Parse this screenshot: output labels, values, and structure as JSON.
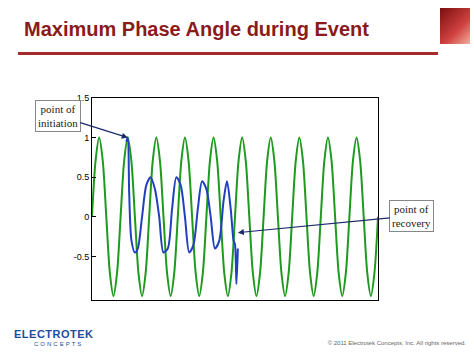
{
  "chart_data": {
    "type": "line",
    "title": "Maximum Phase Angle during Event",
    "tick_labels": "y",
    "grid": false,
    "xlim": [
      0,
      10
    ],
    "ylim": [
      -1.05,
      1.5
    ],
    "yticks": [
      -0.5,
      0,
      0.5,
      1,
      1.5
    ],
    "series": [
      {
        "color": "#1e9a1e",
        "x": [
          0,
          0.125,
          0.25,
          0.375,
          0.5,
          0.625,
          0.75,
          0.875,
          1,
          1.125,
          1.25,
          1.375,
          1.5,
          1.625,
          1.75,
          1.875,
          2,
          2.125,
          2.25,
          2.375,
          2.5,
          2.625,
          2.75,
          2.875,
          3,
          3.125,
          3.25,
          3.375,
          3.5,
          3.625,
          3.75,
          3.875,
          4,
          4.125,
          4.25,
          4.375,
          4.5,
          4.625,
          4.75,
          4.875,
          5,
          5.125,
          5.25,
          5.375,
          5.5,
          5.625,
          5.75,
          5.875,
          6,
          6.125,
          6.25,
          6.375,
          6.5,
          6.625,
          6.75,
          6.875,
          7,
          7.125,
          7.25,
          7.375,
          7.5,
          7.625,
          7.75,
          7.875,
          8,
          8.125,
          8.25,
          8.375,
          8.5,
          8.625,
          8.75,
          8.875,
          9,
          9.125,
          9.25,
          9.375,
          9.5,
          9.625,
          9.75,
          9.875,
          10
        ],
        "values": [
          0,
          0.71,
          1,
          0.71,
          0,
          -0.71,
          -1,
          -0.71,
          0,
          0.71,
          1,
          0.71,
          0,
          -0.71,
          -1,
          -0.71,
          0,
          0.71,
          1,
          0.71,
          0,
          -0.71,
          -1,
          -0.71,
          0,
          0.71,
          1,
          0.71,
          0,
          -0.71,
          -1,
          -0.71,
          0,
          0.71,
          1,
          0.71,
          0,
          -0.71,
          -1,
          -0.71,
          0,
          0.71,
          1,
          0.71,
          0,
          -0.71,
          -1,
          -0.71,
          0,
          0.71,
          1,
          0.71,
          0,
          -0.71,
          -1,
          -0.71,
          0,
          0.71,
          1,
          0.71,
          0,
          -0.71,
          -1,
          -0.71,
          0,
          0.71,
          1,
          0.71,
          0,
          -0.71,
          -1,
          -0.71,
          0,
          0.71,
          1,
          0.71,
          0,
          -0.71,
          -1,
          -0.71,
          0
        ]
      },
      {
        "color": "#2040c0",
        "x": [
          1.2,
          1.25,
          1.3,
          1.38,
          1.5,
          1.6,
          1.75,
          1.9,
          2.05,
          2.2,
          2.35,
          2.5,
          2.65,
          2.8,
          2.95,
          3.1,
          3.25,
          3.4,
          3.55,
          3.7,
          3.85,
          4.0,
          4.15,
          4.3,
          4.45,
          4.6,
          4.72,
          4.85,
          4.95,
          5.0,
          5.05,
          5.1
        ],
        "values": [
          0.95,
          1.0,
          0.3,
          -0.3,
          -0.45,
          -0.4,
          0.0,
          0.4,
          0.5,
          0.35,
          0.0,
          -0.45,
          -0.4,
          0.1,
          0.5,
          0.4,
          0.0,
          -0.45,
          -0.35,
          0.1,
          0.45,
          0.35,
          0.0,
          -0.4,
          -0.3,
          0.2,
          0.45,
          0.1,
          -0.3,
          -0.35,
          -0.85,
          -0.4
        ]
      }
    ],
    "annotations": [
      {
        "text": [
          "point of",
          "initiation"
        ],
        "x": 1.25,
        "y": 1.0
      },
      {
        "text": [
          "point of",
          "recovery"
        ],
        "x": 5.1,
        "y": -0.2
      }
    ]
  },
  "slide": {
    "logo": [
      "ELECTROTEK",
      "CONCEPTS"
    ],
    "footer": "© 2011 Electrotek Concepts, Inc. All rights reserved."
  }
}
